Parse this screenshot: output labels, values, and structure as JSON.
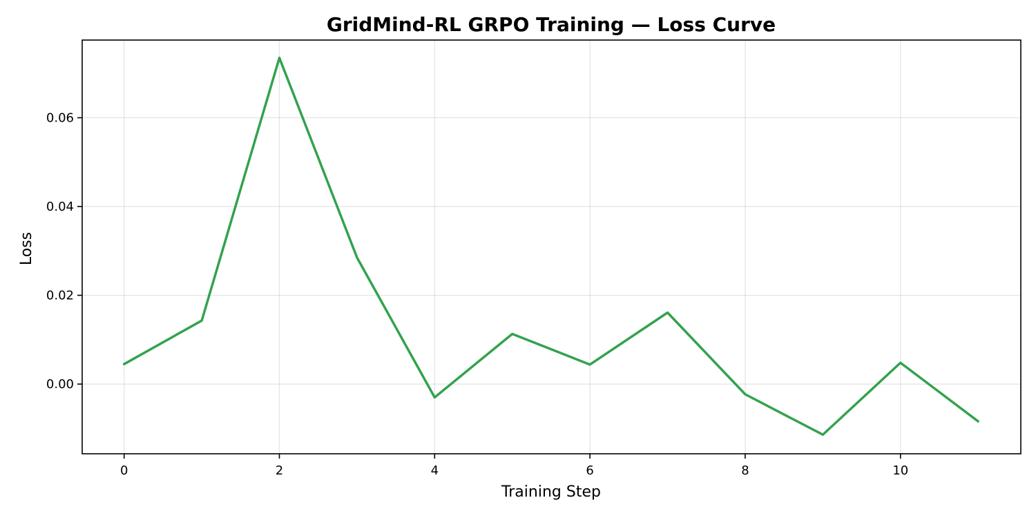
{
  "chart_data": {
    "type": "line",
    "title": "GridMind-RL GRPO Training — Loss Curve",
    "xlabel": "Training Step",
    "ylabel": "Loss",
    "xlim": [
      -0.54,
      11.55
    ],
    "ylim": [
      -0.0157,
      0.0775
    ],
    "x_ticks": [
      0,
      2,
      4,
      6,
      8,
      10
    ],
    "y_ticks": [
      0.0,
      0.02,
      0.04,
      0.06
    ],
    "x_tick_labels": [
      "0",
      "2",
      "4",
      "6",
      "8",
      "10"
    ],
    "y_tick_labels": [
      "0.00",
      "0.02",
      "0.04",
      "0.06"
    ],
    "grid": true,
    "series": [
      {
        "color": "#33a24e",
        "x": [
          0,
          1,
          2,
          3,
          4,
          5,
          6,
          7,
          8,
          9,
          10,
          11
        ],
        "y": [
          0.0045,
          0.0143,
          0.0735,
          0.0285,
          -0.003,
          0.0113,
          0.0044,
          0.0161,
          -0.0023,
          -0.0114,
          0.0048,
          -0.0084
        ]
      }
    ]
  }
}
